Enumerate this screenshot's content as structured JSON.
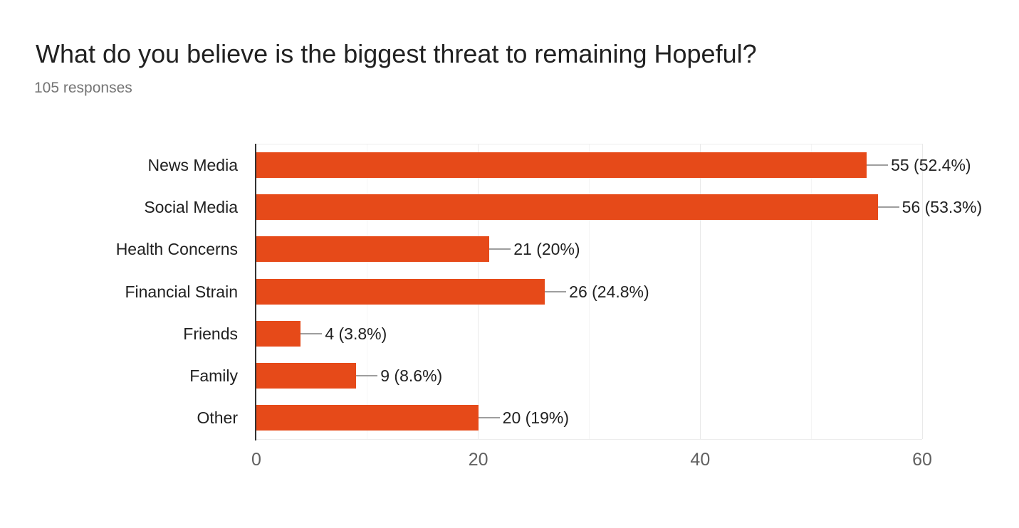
{
  "header": {
    "title": "What do you believe is the biggest threat to remaining Hopeful?",
    "response_count_text": "105 responses"
  },
  "colors": {
    "bar": "#e64a19",
    "leader_line": "#9e9e9e",
    "axis_baseline": "#333333",
    "gridline_major": "#e9e9e9",
    "gridline_minor": "#f5f5f5",
    "title_text": "#212121",
    "subtitle_text": "#757575",
    "tick_text": "#616161"
  },
  "chart_data": {
    "type": "bar",
    "orientation": "horizontal",
    "title": "What do you believe is the biggest threat to remaining Hopeful?",
    "subtitle": "105 responses",
    "categories": [
      "News Media",
      "Social Media",
      "Health Concerns",
      "Financial Strain",
      "Friends",
      "Family",
      "Other"
    ],
    "values": [
      55,
      56,
      21,
      26,
      4,
      9,
      20
    ],
    "value_labels": [
      "55 (52.4%)",
      "56 (53.3%)",
      "21 (20%)",
      "26 (24.8%)",
      "4 (3.8%)",
      "9 (8.6%)",
      "20 (19%)"
    ],
    "total_responses": 105,
    "xlabel": "",
    "ylabel": "",
    "xlim": [
      0,
      60
    ],
    "x_major_ticks": [
      0,
      20,
      40,
      60
    ],
    "x_minor_ticks": [
      10,
      30,
      50
    ],
    "grid": true,
    "legend": "none"
  }
}
